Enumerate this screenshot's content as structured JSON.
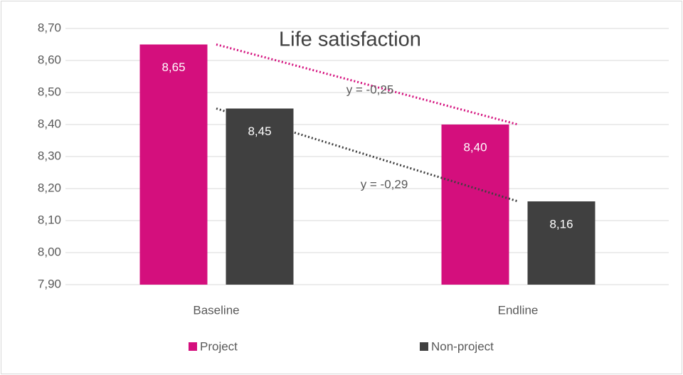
{
  "chart_data": {
    "type": "bar",
    "title": "Life satisfaction",
    "categories": [
      "Baseline",
      "Endline"
    ],
    "series": [
      {
        "name": "Project",
        "color": "#d40f7d",
        "values": [
          8.65,
          8.4
        ],
        "value_labels": [
          "8,65",
          "8,40"
        ],
        "trendline_label": "y = -0,25"
      },
      {
        "name": "Non-project",
        "color": "#404040",
        "values": [
          8.45,
          8.16
        ],
        "value_labels": [
          "8,45",
          "8,16"
        ],
        "trendline_label": "y = -0,29"
      }
    ],
    "ylim": [
      7.9,
      8.7
    ],
    "yticks": [
      {
        "value": 7.9,
        "label": "7,90"
      },
      {
        "value": 8.0,
        "label": "8,00"
      },
      {
        "value": 8.1,
        "label": "8,10"
      },
      {
        "value": 8.2,
        "label": "8,20"
      },
      {
        "value": 8.3,
        "label": "8,30"
      },
      {
        "value": 8.4,
        "label": "8,40"
      },
      {
        "value": 8.5,
        "label": "8,50"
      },
      {
        "value": 8.6,
        "label": "8,60"
      },
      {
        "value": 8.7,
        "label": "8,70"
      }
    ],
    "grid": true,
    "legend": "bottom",
    "trendline": true
  }
}
